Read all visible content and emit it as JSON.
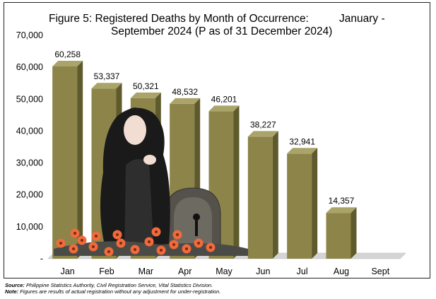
{
  "chart_data": {
    "type": "bar",
    "title_line1": "Figure 5: Registered Deaths by Month of Occurrence:",
    "title_line1_right": "January -",
    "title_line2": "September 2024 (P as of 31 December 2024)",
    "categories": [
      "Jan",
      "Feb",
      "Mar",
      "Apr",
      "May",
      "Jun",
      "Jul",
      "Aug",
      "Sept"
    ],
    "values": [
      60258,
      53337,
      50321,
      48532,
      46201,
      38227,
      32941,
      14357,
      null
    ],
    "value_labels": [
      "60,258",
      "53,337",
      "50,321",
      "48,532",
      "46,201",
      "38,227",
      "32,941",
      "14,357",
      ""
    ],
    "ylim": [
      0,
      70000
    ],
    "yticks": [
      0,
      10000,
      20000,
      30000,
      40000,
      50000,
      60000,
      70000
    ],
    "ytick_labels": [
      "-",
      "10,000",
      "20,000",
      "30,000",
      "40,000",
      "50,000",
      "60,000",
      "70,000"
    ],
    "grid": false,
    "legend": "none",
    "bar_color": "#8c8448",
    "bar_side_color": "#5f5a2c",
    "bar_top_color": "#aaa46a"
  },
  "illustration": {
    "icon": "grieving-woman-with-tombstone-and-flowers-icon",
    "hair_color": "#1a1a1a",
    "stone_color": "#55524c",
    "flower_color": "#f06a3c"
  },
  "footer": {
    "source_label": "Source:",
    "source_text": "Philippine Statistics Authority, Civil Registration Service, Vital Statistics Division.",
    "note_label": "Note:",
    "note_text": "Figures are results of actual registration without any adjustment for under-registration."
  }
}
